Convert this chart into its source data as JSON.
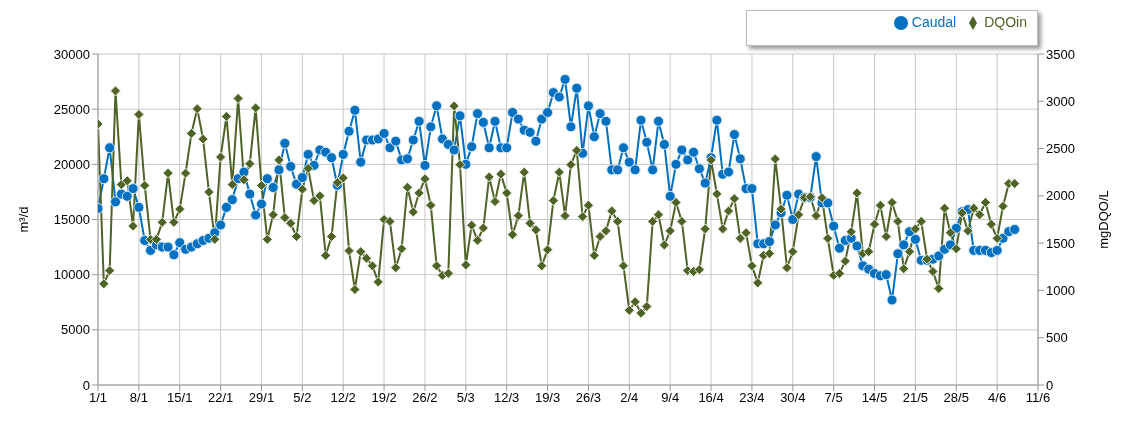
{
  "chart_data": {
    "type": "line",
    "ylabel": "m³/d",
    "y2label": "mgDQO/L",
    "x": [
      "--01-01",
      "--01-02",
      "--01-03",
      "--01-04",
      "--01-05",
      "--01-06",
      "--01-07",
      "--01-08",
      "--01-09",
      "--01-10",
      "--01-11",
      "--01-12",
      "--01-13",
      "--01-14",
      "--01-15",
      "--01-16",
      "--01-17",
      "--01-18",
      "--01-19",
      "--01-20",
      "--01-21",
      "--01-22",
      "--01-23",
      "--01-24",
      "--01-25",
      "--01-26",
      "--01-27",
      "--01-28",
      "--01-29",
      "--01-30",
      "--01-31",
      "--02-01",
      "--02-02",
      "--02-03",
      "--02-04",
      "--02-05",
      "--02-06",
      "--02-07",
      "--02-08",
      "--02-09",
      "--02-10",
      "--02-11",
      "--02-12",
      "--02-13",
      "--02-14",
      "--02-15",
      "--02-16",
      "--02-17",
      "--02-18",
      "--02-19",
      "--02-20",
      "--02-21",
      "--02-22",
      "--02-23",
      "--02-24",
      "--02-25",
      "--02-26",
      "--02-27",
      "--02-28",
      "--03-01",
      "--03-02",
      "--03-03",
      "--03-04",
      "--03-05",
      "--03-06",
      "--03-07",
      "--03-08",
      "--03-09",
      "--03-10",
      "--03-11",
      "--03-12",
      "--03-13",
      "--03-14",
      "--03-15",
      "--03-16",
      "--03-17",
      "--03-18",
      "--03-19",
      "--03-20",
      "--03-21",
      "--03-22",
      "--03-23",
      "--03-24",
      "--03-25",
      "--03-26",
      "--03-27",
      "--03-28",
      "--03-29",
      "--03-30",
      "--03-31",
      "--04-01",
      "--04-02",
      "--04-03",
      "--04-04",
      "--04-05",
      "--04-06",
      "--04-07",
      "--04-08",
      "--04-09",
      "--04-10",
      "--04-11",
      "--04-12",
      "--04-13",
      "--04-14",
      "--04-15",
      "--04-16",
      "--04-17",
      "--04-18",
      "--04-19",
      "--04-20",
      "--04-21",
      "--04-22",
      "--04-23",
      "--04-24",
      "--04-25",
      "--04-26",
      "--04-27",
      "--04-28",
      "--04-29",
      "--04-30",
      "--05-01",
      "--05-02",
      "--05-03",
      "--05-04",
      "--05-05",
      "--05-06",
      "--05-07",
      "--05-08",
      "--05-09",
      "--05-10",
      "--05-11",
      "--05-12",
      "--05-13",
      "--05-14",
      "--05-15",
      "--05-16",
      "--05-17",
      "--05-18",
      "--05-19",
      "--05-20",
      "--05-21",
      "--05-22",
      "--05-23",
      "--05-24",
      "--05-25",
      "--05-26",
      "--05-27",
      "--05-28",
      "--05-29",
      "--05-30",
      "--05-31",
      "--06-01",
      "--06-02",
      "--06-03",
      "--06-04",
      "--06-05",
      "--06-06",
      "--06-07"
    ],
    "xlim": [
      "--01-01",
      "--06-11"
    ],
    "xticks": [
      {
        "value": "--01-01",
        "label": "1/1"
      },
      {
        "value": "--01-08",
        "label": "8/1"
      },
      {
        "value": "--01-15",
        "label": "15/1"
      },
      {
        "value": "--01-22",
        "label": "22/1"
      },
      {
        "value": "--01-29",
        "label": "29/1"
      },
      {
        "value": "--02-05",
        "label": "5/2"
      },
      {
        "value": "--02-12",
        "label": "12/2"
      },
      {
        "value": "--02-19",
        "label": "19/2"
      },
      {
        "value": "--02-26",
        "label": "26/2"
      },
      {
        "value": "--03-05",
        "label": "5/3"
      },
      {
        "value": "--03-12",
        "label": "12/3"
      },
      {
        "value": "--03-19",
        "label": "19/3"
      },
      {
        "value": "--03-26",
        "label": "26/3"
      },
      {
        "value": "--04-02",
        "label": "2/4"
      },
      {
        "value": "--04-09",
        "label": "9/4"
      },
      {
        "value": "--04-16",
        "label": "16/4"
      },
      {
        "value": "--04-23",
        "label": "23/4"
      },
      {
        "value": "--04-30",
        "label": "30/4"
      },
      {
        "value": "--05-07",
        "label": "7/5"
      },
      {
        "value": "--05-14",
        "label": "14/5"
      },
      {
        "value": "--05-21",
        "label": "21/5"
      },
      {
        "value": "--05-28",
        "label": "28/5"
      },
      {
        "value": "--06-04",
        "label": "4/6"
      },
      {
        "value": "--06-11",
        "label": "11/6"
      }
    ],
    "ylim": [
      0,
      30000
    ],
    "yticks": [
      0,
      5000,
      10000,
      15000,
      20000,
      25000,
      30000
    ],
    "y2lim": [
      0,
      3500
    ],
    "y2ticks": [
      0,
      500,
      1000,
      1500,
      2000,
      2500,
      3000,
      3500
    ],
    "grid": true,
    "legend": "top right",
    "line_style": "solid",
    "series": [
      {
        "name": "Caudal",
        "color": "#0070c0",
        "marker": "circle",
        "values": [
          16000,
          18700,
          21500,
          16600,
          17300,
          17100,
          17800,
          16100,
          13100,
          12200,
          12700,
          12500,
          12500,
          11800,
          12900,
          12300,
          12500,
          12800,
          13100,
          13300,
          13800,
          14500,
          16100,
          16800,
          18700,
          19300,
          17300,
          15400,
          16400,
          18700,
          17900,
          19500,
          21900,
          19800,
          18200,
          18800,
          20900,
          19900,
          21300,
          21100,
          20600,
          18100,
          20900,
          23000,
          24900,
          20200,
          22200,
          22200,
          22300,
          22800,
          21500,
          22100,
          20400,
          20500,
          22200,
          23900,
          19900,
          23400,
          25300,
          22300,
          21800,
          21300,
          24400,
          20000,
          21600,
          24600,
          23800,
          21500,
          23900,
          21500,
          21500,
          24700,
          24100,
          23100,
          22900,
          22100,
          24100,
          24700,
          26500,
          26100,
          27700,
          23400,
          26900,
          21000,
          25300,
          22500,
          24600,
          23900,
          19500,
          19500,
          21500,
          20200,
          19500,
          24000,
          22000,
          19500,
          23900,
          21800,
          17100,
          20000,
          21300,
          20400,
          21100,
          19600,
          18300,
          20600,
          24000,
          19100,
          19300,
          22700,
          20500,
          17800,
          17800,
          12800,
          12800,
          13000,
          14500,
          15600,
          17200,
          15000,
          17300,
          17000,
          17000,
          20700,
          16500,
          16500,
          14400,
          12400,
          13100,
          13300,
          12600,
          10800,
          10500,
          10100,
          9900,
          10000,
          7700,
          11900,
          12700,
          13900,
          13200,
          11300,
          11300,
          11400,
          11700,
          12300,
          12700,
          14200,
          15700,
          15900,
          12200,
          12200,
          12200,
          12000,
          12200,
          13300,
          13900,
          14100
        ]
      },
      {
        "name": "DQOin",
        "color": "#4f6228",
        "marker": "diamond",
        "axis": "y2",
        "values": [
          2760,
          1070,
          1210,
          3110,
          2120,
          2160,
          1680,
          2860,
          2110,
          1540,
          1540,
          1720,
          2240,
          1720,
          1860,
          2240,
          2660,
          2920,
          2600,
          2040,
          1540,
          2410,
          2840,
          2120,
          3030,
          2170,
          2340,
          2930,
          2110,
          1540,
          1800,
          2380,
          1770,
          1710,
          1570,
          2070,
          2290,
          1950,
          2000,
          1370,
          1570,
          2140,
          2190,
          1420,
          1010,
          1410,
          1340,
          1260,
          1090,
          1750,
          1730,
          1240,
          1440,
          2090,
          1830,
          2030,
          2180,
          1900,
          1260,
          1160,
          1180,
          2950,
          2330,
          1270,
          1690,
          1530,
          1660,
          2200,
          1940,
          2230,
          2030,
          1590,
          1790,
          2250,
          1710,
          1640,
          1260,
          1430,
          1950,
          2250,
          1790,
          2330,
          2480,
          1780,
          1900,
          1370,
          1570,
          1630,
          1840,
          1730,
          1260,
          790,
          880,
          760,
          830,
          1730,
          1800,
          1480,
          1630,
          1930,
          1730,
          1210,
          1200,
          1220,
          1650,
          2380,
          2020,
          1650,
          1840,
          1970,
          1550,
          1610,
          1260,
          1080,
          1370,
          1390,
          2390,
          1860,
          1240,
          1410,
          1800,
          1980,
          1990,
          1790,
          1980,
          1550,
          1160,
          1180,
          1310,
          1620,
          2030,
          1390,
          1410,
          1700,
          1900,
          1570,
          1930,
          1730,
          1230,
          1410,
          1650,
          1730,
          1330,
          1200,
          1020,
          1870,
          1610,
          1440,
          1820,
          1630,
          1870,
          1800,
          1930,
          1700,
          1550,
          1890,
          2130,
          2130
        ]
      }
    ]
  }
}
